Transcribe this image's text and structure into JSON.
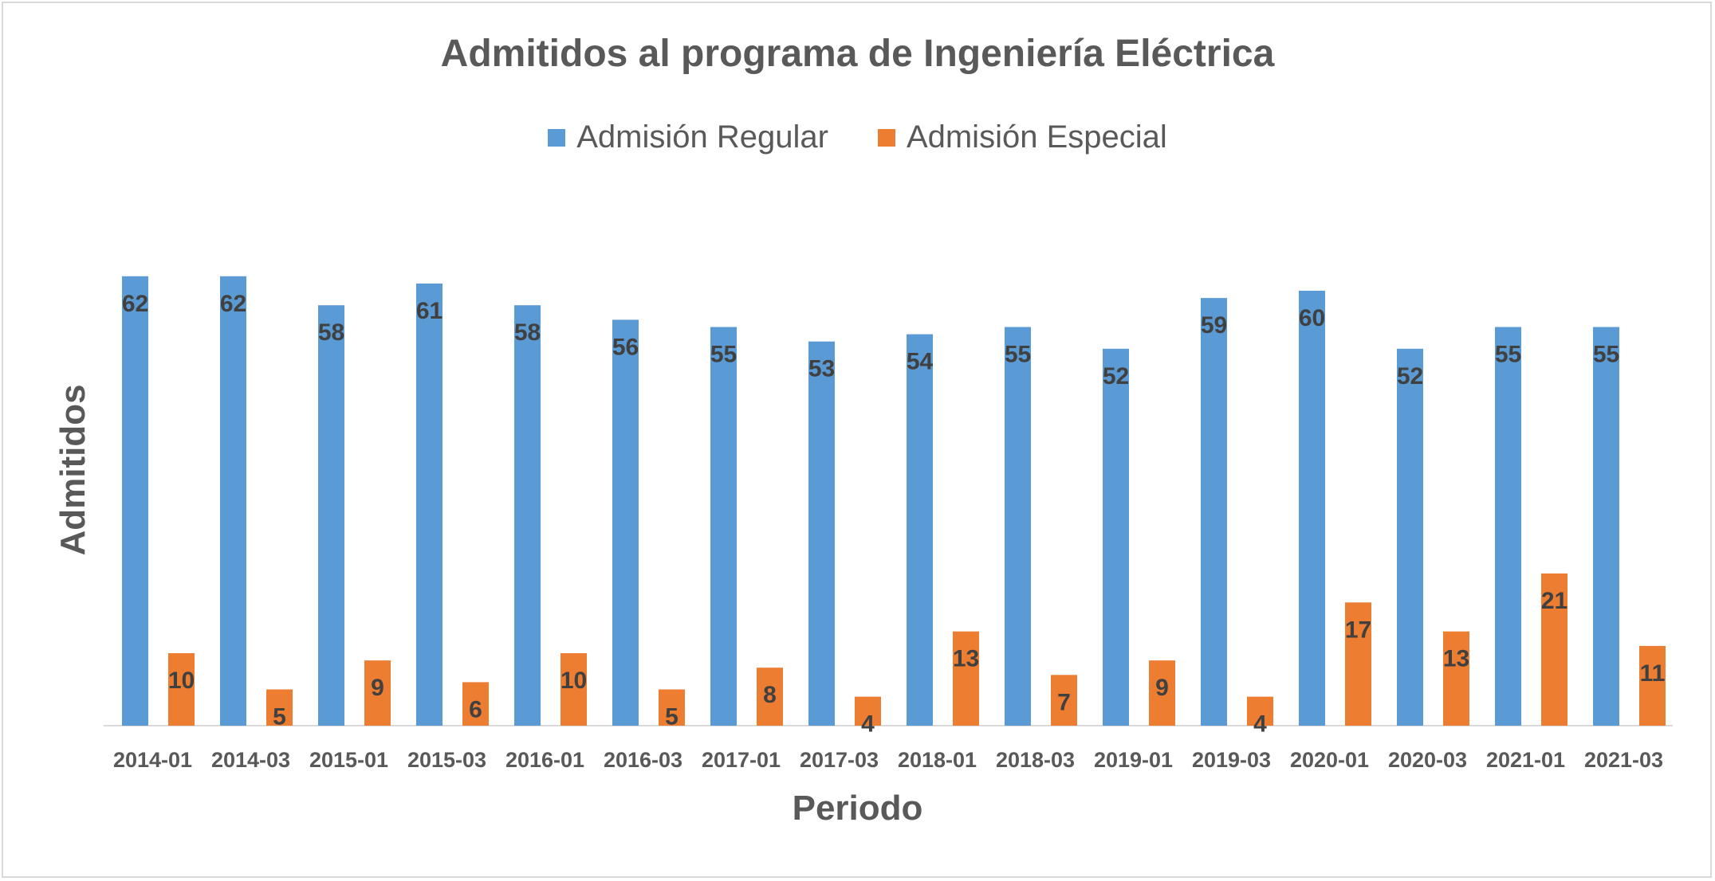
{
  "chart_data": {
    "type": "bar",
    "title": "Admitidos al programa de Ingeniería Eléctrica",
    "xlabel": "Periodo",
    "ylabel": "Admitidos",
    "categories": [
      "2014-01",
      "2014-03",
      "2015-01",
      "2015-03",
      "2016-01",
      "2016-03",
      "2017-01",
      "2017-03",
      "2018-01",
      "2018-03",
      "2019-01",
      "2019-03",
      "2020-01",
      "2020-03",
      "2021-01",
      "2021-03"
    ],
    "series": [
      {
        "name": "Admisión Regular",
        "color": "#5b9bd5",
        "values": [
          62,
          62,
          58,
          61,
          58,
          56,
          55,
          53,
          54,
          55,
          52,
          59,
          60,
          52,
          55,
          55
        ]
      },
      {
        "name": "Admisión Especial",
        "color": "#ed7d31",
        "values": [
          10,
          5,
          9,
          6,
          10,
          5,
          8,
          4,
          13,
          7,
          9,
          4,
          17,
          13,
          21,
          11
        ]
      }
    ],
    "ylim": [
      0,
      62
    ],
    "grid": false,
    "legend_position": "top-center",
    "data_labels": true
  }
}
